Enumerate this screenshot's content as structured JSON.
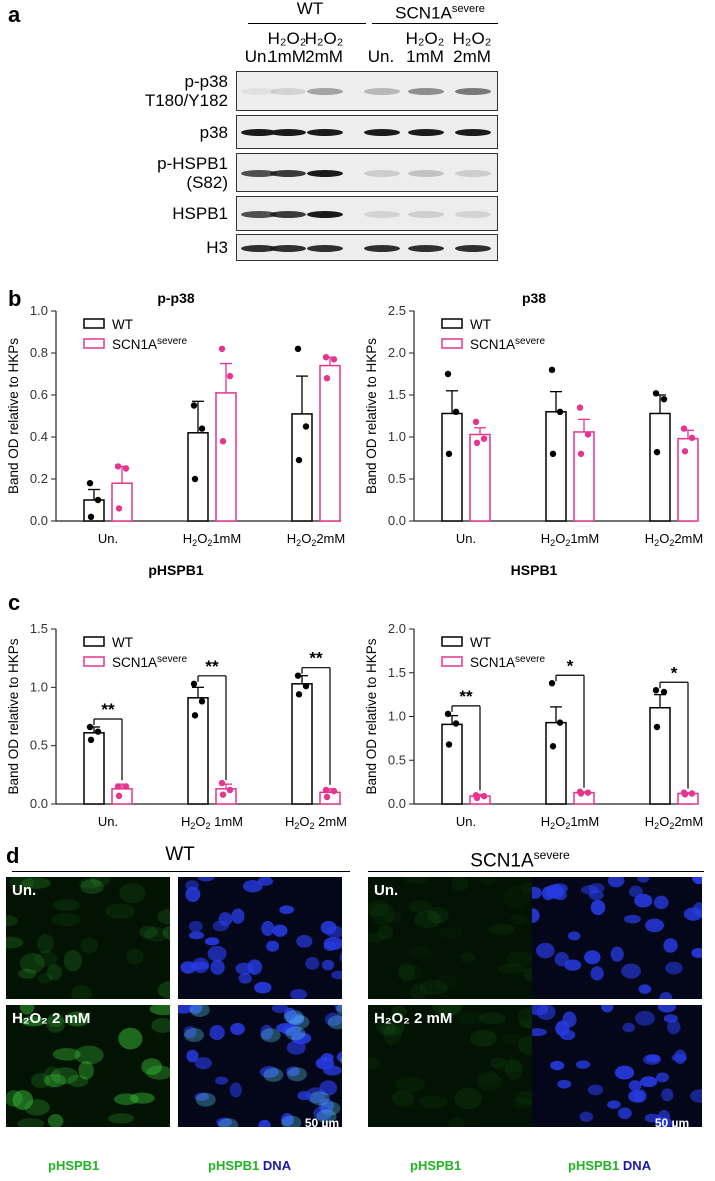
{
  "panel_letters": {
    "a": "a",
    "b": "b",
    "c": "c",
    "d": "d"
  },
  "panel_a": {
    "group_wt": "WT",
    "group_scn": "SCN1A",
    "group_scn_sup": "severe",
    "lanes": [
      {
        "top": "",
        "bottom": "Un."
      },
      {
        "top": "H₂O₂",
        "bottom": "1mM"
      },
      {
        "top": "H₂O₂",
        "bottom": "2mM"
      },
      {
        "top": "",
        "bottom": "Un."
      },
      {
        "top": "H₂O₂",
        "bottom": "1mM"
      },
      {
        "top": "H₂O₂",
        "bottom": "2mM"
      }
    ],
    "blots": [
      {
        "label": "p-p38\nT180/Y182"
      },
      {
        "label": "p38"
      },
      {
        "label": "p-HSPB1\n(S82)"
      },
      {
        "label": "HSPB1"
      },
      {
        "label": "H3"
      }
    ]
  },
  "chart_data": [
    {
      "type": "bar",
      "title": "p-p38",
      "ylabel": "Band OD relative to HKPs",
      "categories": [
        "Un.",
        "H₂O₂1mM",
        "H₂O₂2mM"
      ],
      "ylim": [
        0,
        1.0
      ],
      "yticks": [
        "0.0",
        "0.2",
        "0.4",
        "0.6",
        "0.8",
        "1.0"
      ],
      "series": [
        {
          "name": "WT",
          "color": "#000000",
          "values": [
            0.1,
            0.42,
            0.51
          ],
          "sem": [
            0.05,
            0.15,
            0.18
          ],
          "points": [
            [
              0.18,
              0.1,
              0.02
            ],
            [
              0.55,
              0.44,
              0.2
            ],
            [
              0.82,
              0.45,
              0.29
            ]
          ]
        },
        {
          "name": "SCN1A",
          "sup": "severe",
          "color": "#e6348f",
          "values": [
            0.18,
            0.61,
            0.74
          ],
          "sem": [
            0.08,
            0.14,
            0.04
          ],
          "points": [
            [
              0.26,
              0.25,
              0.06
            ],
            [
              0.82,
              0.69,
              0.38
            ],
            [
              0.78,
              0.77,
              0.68
            ]
          ]
        }
      ],
      "significance": []
    },
    {
      "type": "bar",
      "title": "p38",
      "ylabel": "Band OD relative to HKPs",
      "categories": [
        "Un.",
        "H₂O₂1mM",
        "H₂O₂2mM"
      ],
      "ylim": [
        0,
        2.5
      ],
      "yticks": [
        "0.0",
        "0.5",
        "1.0",
        "1.5",
        "2.0",
        "2.5"
      ],
      "series": [
        {
          "name": "WT",
          "color": "#000000",
          "values": [
            1.28,
            1.3,
            1.28
          ],
          "sem": [
            0.27,
            0.24,
            0.22
          ],
          "points": [
            [
              1.75,
              1.3,
              0.8
            ],
            [
              1.8,
              1.3,
              0.8
            ],
            [
              1.52,
              1.45,
              0.82
            ]
          ]
        },
        {
          "name": "SCN1A",
          "sup": "severe",
          "color": "#e6348f",
          "values": [
            1.03,
            1.06,
            0.98
          ],
          "sem": [
            0.08,
            0.15,
            0.1
          ],
          "points": [
            [
              1.18,
              0.98,
              0.93
            ],
            [
              1.35,
              1.03,
              0.8
            ],
            [
              1.1,
              0.99,
              0.83
            ]
          ]
        }
      ],
      "significance": []
    },
    {
      "type": "bar",
      "title": "pHSPB1",
      "ylabel": "Band OD relative to HKPs",
      "categories": [
        "Un.",
        "H₂O₂ 1mM",
        "H₂O₂ 2mM"
      ],
      "ylim": [
        0,
        1.5
      ],
      "yticks": [
        "0.0",
        "0.5",
        "1.0",
        "1.5"
      ],
      "series": [
        {
          "name": "WT",
          "color": "#000000",
          "values": [
            0.61,
            0.91,
            1.03
          ],
          "sem": [
            0.05,
            0.09,
            0.07
          ],
          "points": [
            [
              0.66,
              0.62,
              0.55
            ],
            [
              1.03,
              0.88,
              0.76
            ],
            [
              1.1,
              1.01,
              0.94
            ]
          ]
        },
        {
          "name": "SCN1A",
          "sup": "severe",
          "color": "#e6348f",
          "values": [
            0.13,
            0.13,
            0.1
          ],
          "sem": [
            0.04,
            0.04,
            0.03
          ],
          "points": [
            [
              0.15,
              0.15,
              0.07
            ],
            [
              0.18,
              0.12,
              0.08
            ],
            [
              0.12,
              0.11,
              0.06
            ]
          ]
        }
      ],
      "significance": [
        "**",
        "**",
        "**"
      ]
    },
    {
      "type": "bar",
      "title": "HSPB1",
      "ylabel": "Band OD relative to HKPs",
      "categories": [
        "Un.",
        "H₂O₂1mM",
        "H₂O₂2mM"
      ],
      "ylim": [
        0,
        2.0
      ],
      "yticks": [
        "0.0",
        "0.5",
        "1.0",
        "1.5",
        "2.0"
      ],
      "series": [
        {
          "name": "WT",
          "color": "#000000",
          "values": [
            0.91,
            0.93,
            1.1
          ],
          "sem": [
            0.1,
            0.18,
            0.15
          ],
          "points": [
            [
              1.03,
              0.92,
              0.68
            ],
            [
              1.38,
              0.93,
              0.66
            ],
            [
              1.3,
              1.28,
              0.88
            ]
          ]
        },
        {
          "name": "SCN1A",
          "sup": "severe",
          "color": "#e6348f",
          "values": [
            0.09,
            0.13,
            0.12
          ],
          "sem": [
            0.02,
            0.01,
            0.01
          ],
          "points": [
            [
              0.1,
              0.09,
              0.07
            ],
            [
              0.14,
              0.13,
              0.12
            ],
            [
              0.13,
              0.12,
              0.11
            ]
          ]
        }
      ],
      "significance": [
        "**",
        "*",
        "*"
      ]
    }
  ],
  "panel_d": {
    "group_wt": "WT",
    "group_scn": "SCN1A",
    "group_scn_sup": "severe",
    "label_un": "Un.",
    "label_h2o2": "H₂O₂ 2 mM",
    "scale": "50 µm",
    "caption_phspb1": "pHSPB1",
    "caption_dna": "DNA",
    "colors": {
      "green": "#22b422",
      "blue": "#1a1aa8"
    }
  }
}
